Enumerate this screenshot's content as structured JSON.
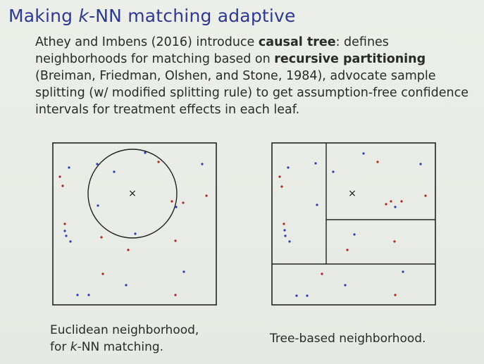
{
  "slide": {
    "title_pre": "Making ",
    "title_k": "k",
    "title_post": "-NN matching adaptive",
    "paragraph": {
      "t1": "Athey and Imbens (2016) introduce ",
      "b1": "causal tree",
      "t2": ": defines neighborhoods for matching based on ",
      "b2": "recursive partitioning",
      "t3": " (Breiman, Friedman, Olshen, and Stone, 1984), advocate sample splitting (w/ modified splitting rule) to get assumption-free confidence intervals for treatment effects in each leaf."
    },
    "caption_left_line1": "Euclidean neighborhood,",
    "caption_left_pre": "for ",
    "caption_left_k": "k",
    "caption_left_post": "-NN matching.",
    "caption_right": "Tree-based neighborhood.",
    "marker_symbol": "×",
    "colors": {
      "title": "#2d3a8f",
      "blue_points": "#2b3bb0",
      "red_points": "#a8271c",
      "frame": "#222222"
    }
  }
}
